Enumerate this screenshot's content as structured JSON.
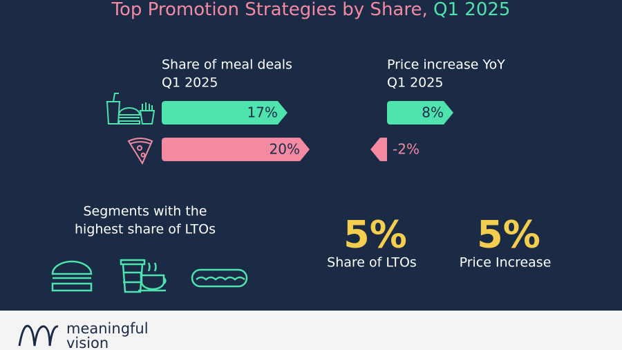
{
  "title": "Top Promotion Strategies by Share,",
  "title_highlight": "Q1 2025",
  "meal_deals": {
    "title_lines": [
      "Share of meal deals",
      "Q1 2025"
    ],
    "items": [
      {
        "value": 17,
        "label": "17%",
        "color": "#4fe3ae"
      },
      {
        "value": 20,
        "label": "20%",
        "color": "#f38aa2"
      }
    ]
  },
  "price_increase": {
    "title_lines": [
      "Price increase YoY",
      "Q1 2025"
    ],
    "items": [
      {
        "value": 8,
        "label": "8%",
        "color": "#4fe3ae"
      },
      {
        "value": -2,
        "label": "-2%",
        "color": "#f38aa2"
      }
    ]
  },
  "lto_segments": {
    "title_lines": [
      "Segments with the",
      "highest share of LTOs"
    ]
  },
  "stats": [
    {
      "value": "5%",
      "label": "Share of LTOs"
    },
    {
      "value": "5%",
      "label": "Price Increase"
    }
  ],
  "footer": {
    "brand_lines": [
      "meaningful",
      "vision"
    ]
  }
}
